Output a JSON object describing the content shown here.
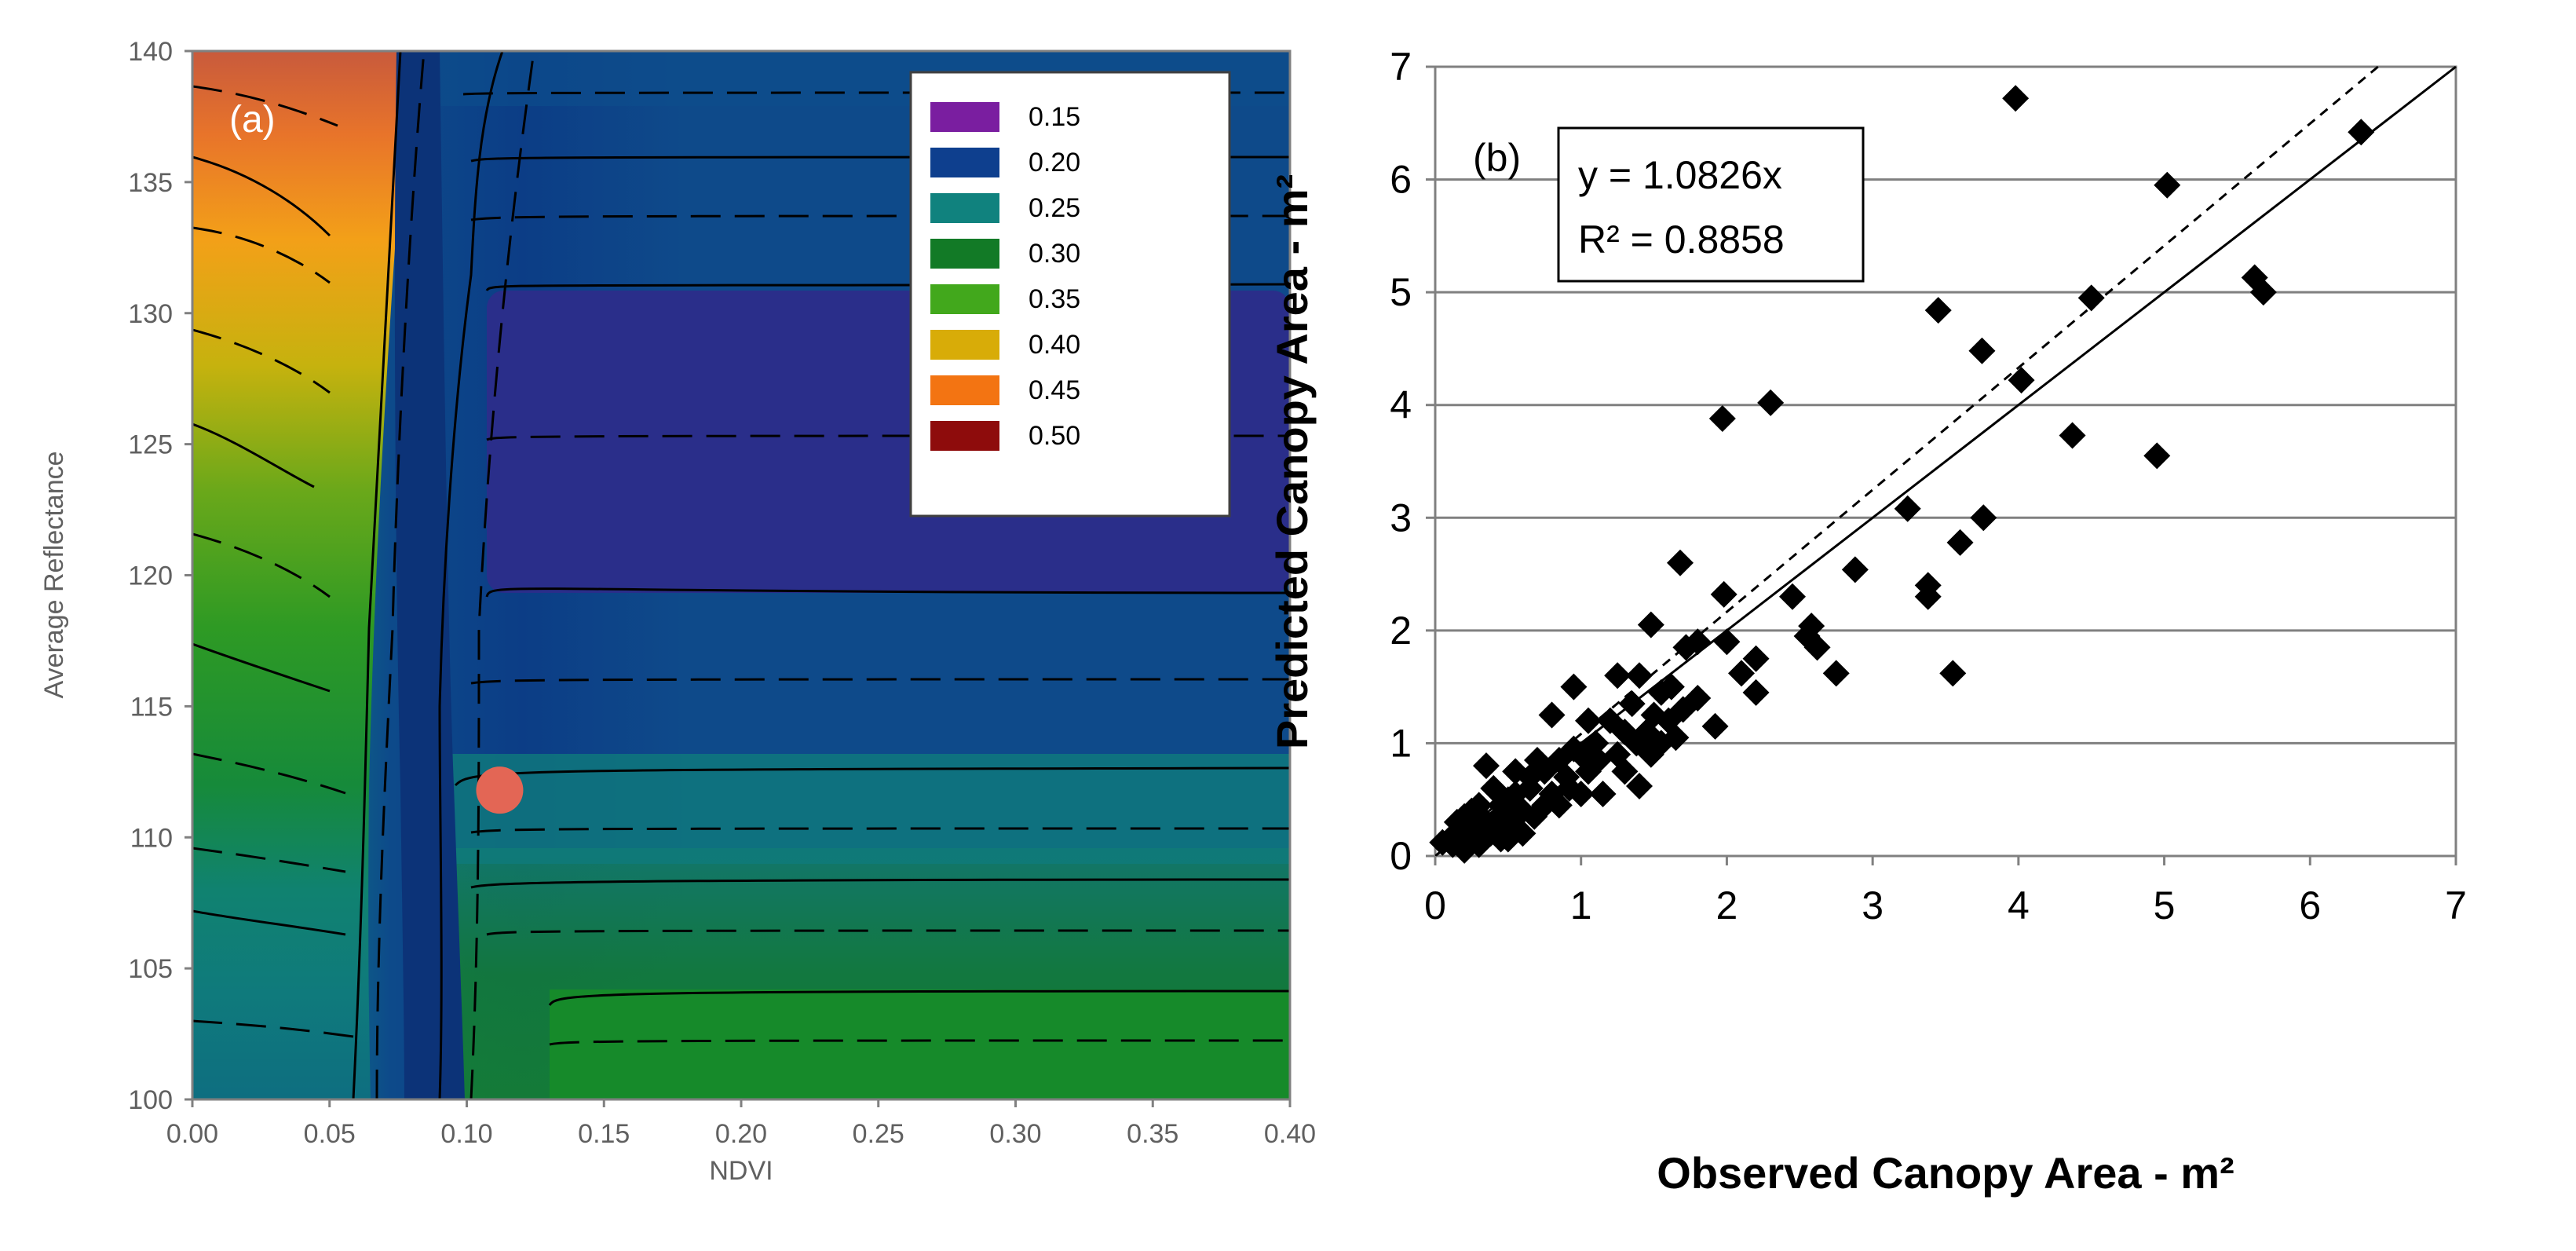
{
  "chart_data": [
    {
      "type": "contour",
      "panel_label": "(a)",
      "xlabel": "NDVI",
      "ylabel": "Average Reflectance",
      "xlim": [
        0.0,
        0.4
      ],
      "ylim": [
        100,
        140
      ],
      "x_ticks": [
        "0.00",
        "0.05",
        "0.10",
        "0.15",
        "0.20",
        "0.25",
        "0.30",
        "0.35",
        "0.40"
      ],
      "y_ticks": [
        "100",
        "105",
        "110",
        "115",
        "120",
        "125",
        "130",
        "135",
        "140"
      ],
      "legend": [
        {
          "label": "0.15",
          "color": "#7a1ea0"
        },
        {
          "label": "0.20",
          "color": "#0e3f8e"
        },
        {
          "label": "0.25",
          "color": "#10827e"
        },
        {
          "label": "0.30",
          "color": "#127a26"
        },
        {
          "label": "0.35",
          "color": "#42a81c"
        },
        {
          "label": "0.40",
          "color": "#d8ac08"
        },
        {
          "label": "0.45",
          "color": "#f37412"
        },
        {
          "label": "0.50",
          "color": "#8e0c0c"
        }
      ],
      "marker": {
        "x": 0.112,
        "y": 111.8,
        "color": "#e36655"
      }
    },
    {
      "type": "scatter",
      "panel_label": "(b)",
      "xlabel": "Observed Canopy Area - m²",
      "ylabel": "Predicted Canopy Area - m²",
      "xlim": [
        0,
        7
      ],
      "ylim": [
        0,
        7
      ],
      "x_ticks": [
        "0",
        "1",
        "2",
        "3",
        "4",
        "5",
        "6",
        "7"
      ],
      "y_ticks": [
        "0",
        "1",
        "2",
        "3",
        "4",
        "5",
        "6",
        "7"
      ],
      "equation": "y = 1.0826x",
      "r_squared": "R² = 0.8858",
      "fit_slope": 1.0826,
      "lines": [
        "1:1 line (solid)",
        "fitted regression (dashed)"
      ],
      "points": [
        [
          3.98,
          6.72
        ],
        [
          6.35,
          6.42
        ],
        [
          5.02,
          5.95
        ],
        [
          5.62,
          5.13
        ],
        [
          5.68,
          5.0
        ],
        [
          4.5,
          4.95
        ],
        [
          3.45,
          4.84
        ],
        [
          3.75,
          4.48
        ],
        [
          4.02,
          4.22
        ],
        [
          2.3,
          4.02
        ],
        [
          1.97,
          3.88
        ],
        [
          4.37,
          3.73
        ],
        [
          4.95,
          3.55
        ],
        [
          3.24,
          3.08
        ],
        [
          3.76,
          3.0
        ],
        [
          3.6,
          2.78
        ],
        [
          1.68,
          2.6
        ],
        [
          2.88,
          2.54
        ],
        [
          3.38,
          2.4
        ],
        [
          3.38,
          2.3
        ],
        [
          2.45,
          2.3
        ],
        [
          1.98,
          2.32
        ],
        [
          1.48,
          2.05
        ],
        [
          2.58,
          2.04
        ],
        [
          2.55,
          1.95
        ],
        [
          2.0,
          1.9
        ],
        [
          1.8,
          1.9
        ],
        [
          1.72,
          1.85
        ],
        [
          2.62,
          1.85
        ],
        [
          2.2,
          1.75
        ],
        [
          2.1,
          1.62
        ],
        [
          2.75,
          1.62
        ],
        [
          3.55,
          1.62
        ],
        [
          2.2,
          1.45
        ],
        [
          1.92,
          1.15
        ],
        [
          1.4,
          0.62
        ],
        [
          1.25,
          1.6
        ],
        [
          1.4,
          1.6
        ],
        [
          1.55,
          1.45
        ],
        [
          1.62,
          1.5
        ],
        [
          1.35,
          1.35
        ],
        [
          1.5,
          1.25
        ],
        [
          1.2,
          1.2
        ],
        [
          1.3,
          1.1
        ],
        [
          1.45,
          1.1
        ],
        [
          1.6,
          1.2
        ],
        [
          1.7,
          1.3
        ],
        [
          1.8,
          1.4
        ],
        [
          1.1,
          1.0
        ],
        [
          1.0,
          0.9
        ],
        [
          0.95,
          1.5
        ],
        [
          0.8,
          1.25
        ],
        [
          1.05,
          0.75
        ],
        [
          1.15,
          0.55
        ],
        [
          0.9,
          0.7
        ],
        [
          0.8,
          0.55
        ],
        [
          0.7,
          0.85
        ],
        [
          0.65,
          0.6
        ],
        [
          0.6,
          0.4
        ],
        [
          0.55,
          0.75
        ],
        [
          0.5,
          0.5
        ],
        [
          0.45,
          0.35
        ],
        [
          0.4,
          0.6
        ],
        [
          0.35,
          0.8
        ],
        [
          0.3,
          0.25
        ],
        [
          0.25,
          0.4
        ],
        [
          0.2,
          0.2
        ],
        [
          0.15,
          0.3
        ],
        [
          0.1,
          0.15
        ],
        [
          0.05,
          0.12
        ],
        [
          0.12,
          0.1
        ],
        [
          0.2,
          0.05
        ],
        [
          0.3,
          0.1
        ],
        [
          0.38,
          0.2
        ],
        [
          0.45,
          0.15
        ],
        [
          0.5,
          0.3
        ],
        [
          0.55,
          0.25
        ],
        [
          0.6,
          0.2
        ],
        [
          0.68,
          0.35
        ],
        [
          0.75,
          0.45
        ],
        [
          0.85,
          0.45
        ],
        [
          0.92,
          0.6
        ],
        [
          1.0,
          0.55
        ],
        [
          1.05,
          1.2
        ],
        [
          1.12,
          0.85
        ],
        [
          1.25,
          0.9
        ],
        [
          1.3,
          0.75
        ],
        [
          1.38,
          1.0
        ],
        [
          1.48,
          0.9
        ],
        [
          1.55,
          1.0
        ],
        [
          1.65,
          1.05
        ],
        [
          0.25,
          0.25
        ],
        [
          0.35,
          0.3
        ],
        [
          0.45,
          0.45
        ],
        [
          0.55,
          0.55
        ],
        [
          0.65,
          0.7
        ],
        [
          0.75,
          0.75
        ],
        [
          0.85,
          0.85
        ],
        [
          0.95,
          0.95
        ],
        [
          0.4,
          0.25
        ],
        [
          0.5,
          0.15
        ],
        [
          0.3,
          0.45
        ],
        [
          0.2,
          0.35
        ],
        [
          0.15,
          0.2
        ]
      ]
    }
  ]
}
